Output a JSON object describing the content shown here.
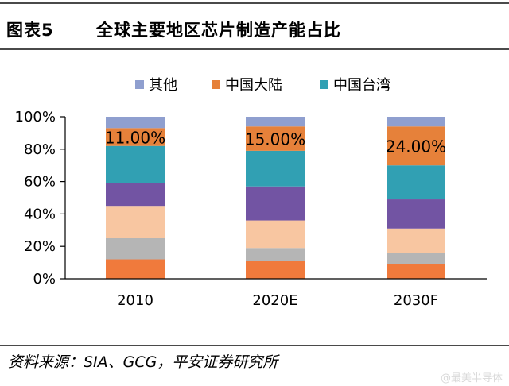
{
  "header": {
    "figure_label": "图表5",
    "title": "全球主要地区芯片制造产能占比"
  },
  "footer": {
    "source": "资料来源：SIA、GCG，平安证券研究所",
    "watermark": "@最美半导体"
  },
  "colors": {
    "other": "#8f9fcf",
    "china_mainland": "#e6813a",
    "taiwan": "#31a0b3",
    "purple": "#7254a3",
    "peach": "#f8c6a1",
    "gray": "#b5b5b5",
    "orange_base": "#f07a3c",
    "axis": "#000000"
  },
  "chart_data": {
    "type": "bar",
    "stacked": true,
    "categories": [
      "2010",
      "2020E",
      "2030F"
    ],
    "yticks": [
      "0%",
      "20%",
      "40%",
      "60%",
      "80%",
      "100%"
    ],
    "ylim": [
      0,
      100
    ],
    "grid": false,
    "legend_position": "top",
    "series": [
      {
        "key": "orange_base",
        "name": "",
        "values": [
          12,
          11,
          9
        ]
      },
      {
        "key": "gray",
        "name": "",
        "values": [
          13,
          8,
          7
        ]
      },
      {
        "key": "peach",
        "name": "",
        "values": [
          20,
          17,
          15
        ]
      },
      {
        "key": "purple",
        "name": "",
        "values": [
          14,
          21,
          18
        ]
      },
      {
        "key": "taiwan",
        "name": "中国台湾",
        "values": [
          23,
          22,
          21
        ]
      },
      {
        "key": "china_mainland",
        "name": "中国大陆",
        "values": [
          11,
          15,
          24
        ],
        "labels": [
          "11.00%",
          "15.00%",
          "24.00%"
        ]
      },
      {
        "key": "other",
        "name": "其他",
        "values": [
          7,
          6,
          6
        ]
      }
    ],
    "legend": [
      {
        "key": "other",
        "label": "其他"
      },
      {
        "key": "china_mainland",
        "label": "中国大陆"
      },
      {
        "key": "taiwan",
        "label": "中国台湾"
      }
    ]
  }
}
